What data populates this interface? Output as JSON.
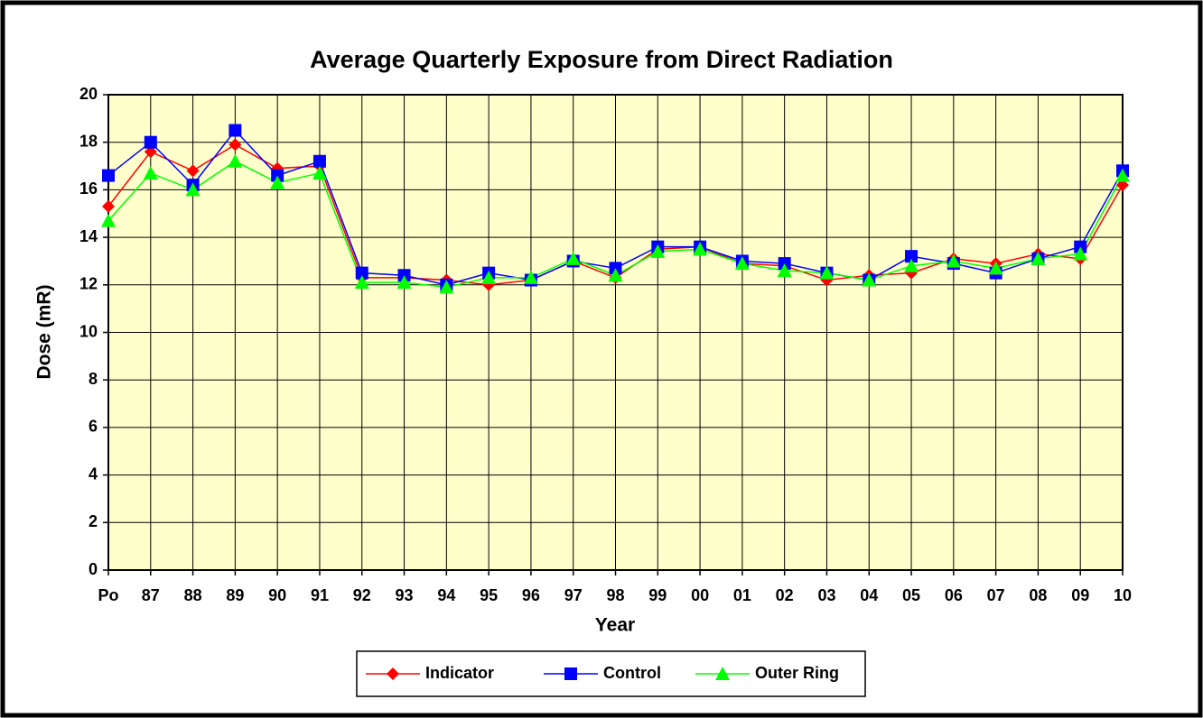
{
  "chart_data": {
    "type": "line",
    "title": "Average Quarterly Exposure from Direct Radiation",
    "x_label": "Year",
    "y_label": "Dose (mR)",
    "categories": [
      "Po",
      "87",
      "88",
      "89",
      "90",
      "91",
      "92",
      "93",
      "94",
      "95",
      "96",
      "97",
      "98",
      "99",
      "00",
      "01",
      "02",
      "03",
      "04",
      "05",
      "06",
      "07",
      "08",
      "09",
      "10"
    ],
    "series": [
      {
        "name": "Indicator",
        "color": "#ff0000",
        "marker": "diamond",
        "values": [
          15.3,
          17.6,
          16.8,
          17.9,
          16.9,
          17.0,
          12.3,
          12.3,
          12.2,
          12.0,
          12.2,
          13.0,
          12.3,
          13.5,
          13.6,
          12.9,
          12.8,
          12.2,
          12.4,
          12.5,
          13.1,
          12.9,
          13.3,
          13.1,
          16.2
        ]
      },
      {
        "name": "Control",
        "color": "#0000ff",
        "marker": "square",
        "values": [
          16.6,
          18.0,
          16.2,
          18.5,
          16.6,
          17.2,
          12.5,
          12.4,
          12.0,
          12.5,
          12.2,
          13.0,
          12.7,
          13.6,
          13.6,
          13.0,
          12.9,
          12.5,
          12.2,
          13.2,
          12.9,
          12.5,
          13.1,
          13.6,
          16.8
        ]
      },
      {
        "name": "Outer Ring",
        "color": "#00ff00",
        "marker": "triangle",
        "values": [
          14.7,
          16.7,
          16.0,
          17.2,
          16.3,
          16.7,
          12.1,
          12.1,
          11.9,
          12.3,
          12.3,
          13.1,
          12.4,
          13.4,
          13.5,
          12.9,
          12.6,
          12.5,
          12.2,
          12.8,
          13.0,
          12.7,
          13.1,
          13.3,
          16.6
        ]
      }
    ],
    "ylim": [
      0,
      20
    ],
    "yticks": [
      0,
      2,
      4,
      6,
      8,
      10,
      12,
      14,
      16,
      18,
      20
    ],
    "grid": true,
    "legend": "bottom",
    "plot_background": "#ffffcc"
  }
}
